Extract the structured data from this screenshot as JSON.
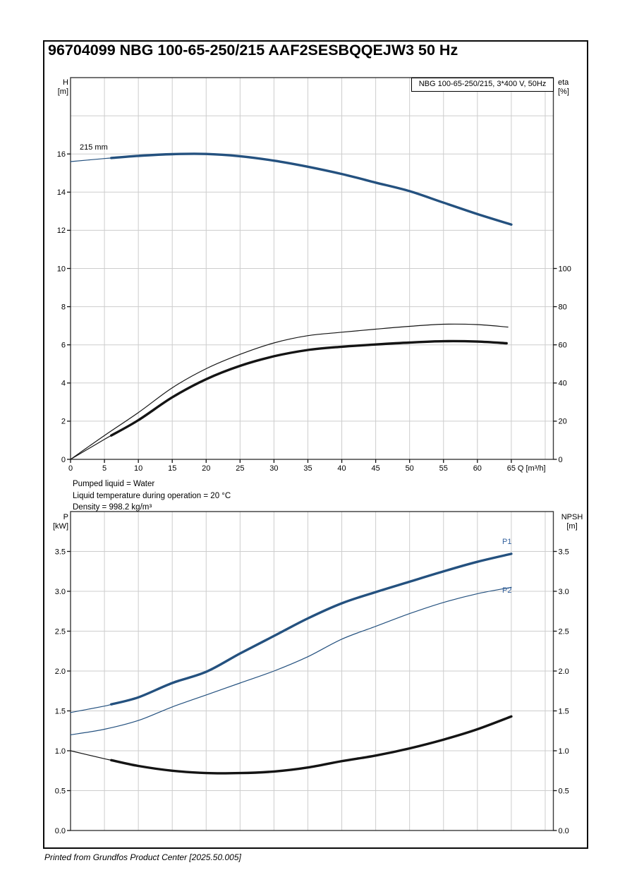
{
  "page": {
    "title": "96704099 NBG 100-65-250/215 AAF2SESBQQEJW3 50 Hz",
    "footer": "Printed from Grundfos Product Center [2025.50.005]"
  },
  "colors": {
    "curve_blue": "#24517f",
    "label_blue": "#33619e",
    "curve_black": "#141414",
    "grid": "#cdcdcd",
    "frame": "#3a3a3a",
    "tick": "#111111"
  },
  "axis_corner_labels": {
    "h": [
      "H",
      "[m]"
    ],
    "eta": [
      "eta",
      "[%]"
    ],
    "p": [
      "P",
      "[kW]"
    ],
    "npsh": [
      "NPSH",
      "[m]"
    ]
  },
  "mid_text": {
    "lines": [
      "Pumped liquid = Water",
      "Liquid temperature during operation = 20 °C",
      "Density = 998.2 kg/m³"
    ]
  },
  "chart_data": [
    {
      "id": "head_efficiency",
      "type": "line",
      "title": "",
      "legend": "NBG 100-65-250/215, 3*400 V, 50Hz",
      "legend_position": "top-right-inside",
      "grid": true,
      "x_axis": {
        "label": "Q [m³/h]",
        "range": [
          0,
          71.2
        ],
        "ticks": [
          0,
          5,
          10,
          15,
          20,
          25,
          30,
          35,
          40,
          45,
          50,
          55,
          60,
          65
        ],
        "grid_step": 5
      },
      "y_left": {
        "label": "H [m]",
        "range": [
          0,
          20
        ],
        "ticks": [
          0,
          2,
          4,
          6,
          8,
          10,
          12,
          14,
          16
        ],
        "tick_labels": [
          "0",
          "2",
          "4",
          "6",
          "8",
          "10",
          "12",
          "14",
          "16"
        ]
      },
      "y_right": {
        "label": "eta [%]",
        "range": [
          0,
          200
        ],
        "ticks": [
          0,
          20,
          40,
          60,
          80,
          100
        ],
        "tick_labels": [
          "0",
          "20",
          "40",
          "60",
          "80",
          "100"
        ]
      },
      "series": [
        {
          "name": "head-curve-215mm",
          "label": "215 mm",
          "axis": "left",
          "color": "blue",
          "style": "thick",
          "thin_until": 6,
          "points": [
            [
              0,
              15.6
            ],
            [
              5,
              15.76
            ],
            [
              10,
              15.9
            ],
            [
              15,
              15.99
            ],
            [
              20,
              16.0
            ],
            [
              25,
              15.88
            ],
            [
              30,
              15.65
            ],
            [
              35,
              15.33
            ],
            [
              40,
              14.95
            ],
            [
              45,
              14.5
            ],
            [
              50,
              14.05
            ],
            [
              55,
              13.45
            ],
            [
              60,
              12.85
            ],
            [
              65,
              12.3
            ]
          ]
        },
        {
          "name": "efficiency-curve-max",
          "label": "",
          "axis": "right",
          "color": "black",
          "style": "thin",
          "thin_until": null,
          "points": [
            [
              0,
              0
            ],
            [
              5,
              12.5
            ],
            [
              10,
              24.5
            ],
            [
              15,
              37.5
            ],
            [
              20,
              47.5
            ],
            [
              25,
              55
            ],
            [
              30,
              61
            ],
            [
              35,
              64.8
            ],
            [
              40,
              66.6
            ],
            [
              45,
              68.2
            ],
            [
              50,
              69.7
            ],
            [
              55,
              70.8
            ],
            [
              60,
              70.6
            ],
            [
              64.5,
              69.3
            ]
          ]
        },
        {
          "name": "efficiency-curve-duty",
          "label": "",
          "axis": "right",
          "color": "black",
          "style": "thick",
          "thin_until": 6,
          "points": [
            [
              0,
              0
            ],
            [
              5,
              10.5
            ],
            [
              10,
              20.5
            ],
            [
              15,
              32.5
            ],
            [
              20,
              42
            ],
            [
              25,
              49
            ],
            [
              30,
              54
            ],
            [
              35,
              57.3
            ],
            [
              40,
              59
            ],
            [
              45,
              60.2
            ],
            [
              50,
              61.2
            ],
            [
              55,
              61.9
            ],
            [
              60,
              61.7
            ],
            [
              64.3,
              60.8
            ]
          ]
        }
      ]
    },
    {
      "id": "power_npsh",
      "type": "line",
      "title": "",
      "grid": true,
      "x_axis": {
        "label": "",
        "range": [
          0,
          71.2
        ],
        "ticks": [],
        "grid_step": 5
      },
      "y_left": {
        "label": "P [kW]",
        "range": [
          0,
          4
        ],
        "ticks": [
          0,
          0.5,
          1,
          1.5,
          2,
          2.5,
          3,
          3.5
        ],
        "tick_labels": [
          "0.0",
          "0.5",
          "1.0",
          "1.5",
          "2.0",
          "2.5",
          "3.0",
          "3.5"
        ]
      },
      "y_right": {
        "label": "NPSH [m]",
        "range": [
          0,
          4
        ],
        "ticks": [
          0,
          0.5,
          1,
          1.5,
          2,
          2.5,
          3,
          3.5
        ],
        "tick_labels": [
          "0.0",
          "0.5",
          "1.0",
          "1.5",
          "2.0",
          "2.5",
          "3.0",
          "3.5"
        ]
      },
      "series": [
        {
          "name": "p1-power-curve",
          "label": "P1",
          "axis": "left",
          "color": "blue",
          "style": "thick",
          "thin_until": 6,
          "points": [
            [
              0,
              1.48
            ],
            [
              5,
              1.56
            ],
            [
              10,
              1.67
            ],
            [
              15,
              1.85
            ],
            [
              20,
              1.99
            ],
            [
              25,
              2.22
            ],
            [
              30,
              2.44
            ],
            [
              35,
              2.66
            ],
            [
              40,
              2.85
            ],
            [
              45,
              2.99
            ],
            [
              50,
              3.12
            ],
            [
              55,
              3.25
            ],
            [
              60,
              3.37
            ],
            [
              65,
              3.47
            ]
          ]
        },
        {
          "name": "p2-power-curve",
          "label": "P2",
          "axis": "left",
          "color": "blue",
          "style": "thin",
          "thin_until": null,
          "points": [
            [
              0,
              1.2
            ],
            [
              5,
              1.27
            ],
            [
              10,
              1.38
            ],
            [
              15,
              1.55
            ],
            [
              20,
              1.7
            ],
            [
              25,
              1.85
            ],
            [
              30,
              2.0
            ],
            [
              35,
              2.18
            ],
            [
              40,
              2.4
            ],
            [
              45,
              2.56
            ],
            [
              50,
              2.72
            ],
            [
              55,
              2.86
            ],
            [
              60,
              2.97
            ],
            [
              65,
              3.05
            ]
          ]
        },
        {
          "name": "npsh-curve",
          "label": "",
          "axis": "right",
          "color": "black",
          "style": "thick",
          "thin_until": 6,
          "points": [
            [
              0,
              1.0
            ],
            [
              5,
              0.9
            ],
            [
              10,
              0.81
            ],
            [
              15,
              0.75
            ],
            [
              20,
              0.72
            ],
            [
              25,
              0.72
            ],
            [
              30,
              0.74
            ],
            [
              35,
              0.79
            ],
            [
              40,
              0.87
            ],
            [
              45,
              0.94
            ],
            [
              50,
              1.03
            ],
            [
              55,
              1.14
            ],
            [
              60,
              1.27
            ],
            [
              65,
              1.43
            ]
          ]
        }
      ]
    }
  ]
}
